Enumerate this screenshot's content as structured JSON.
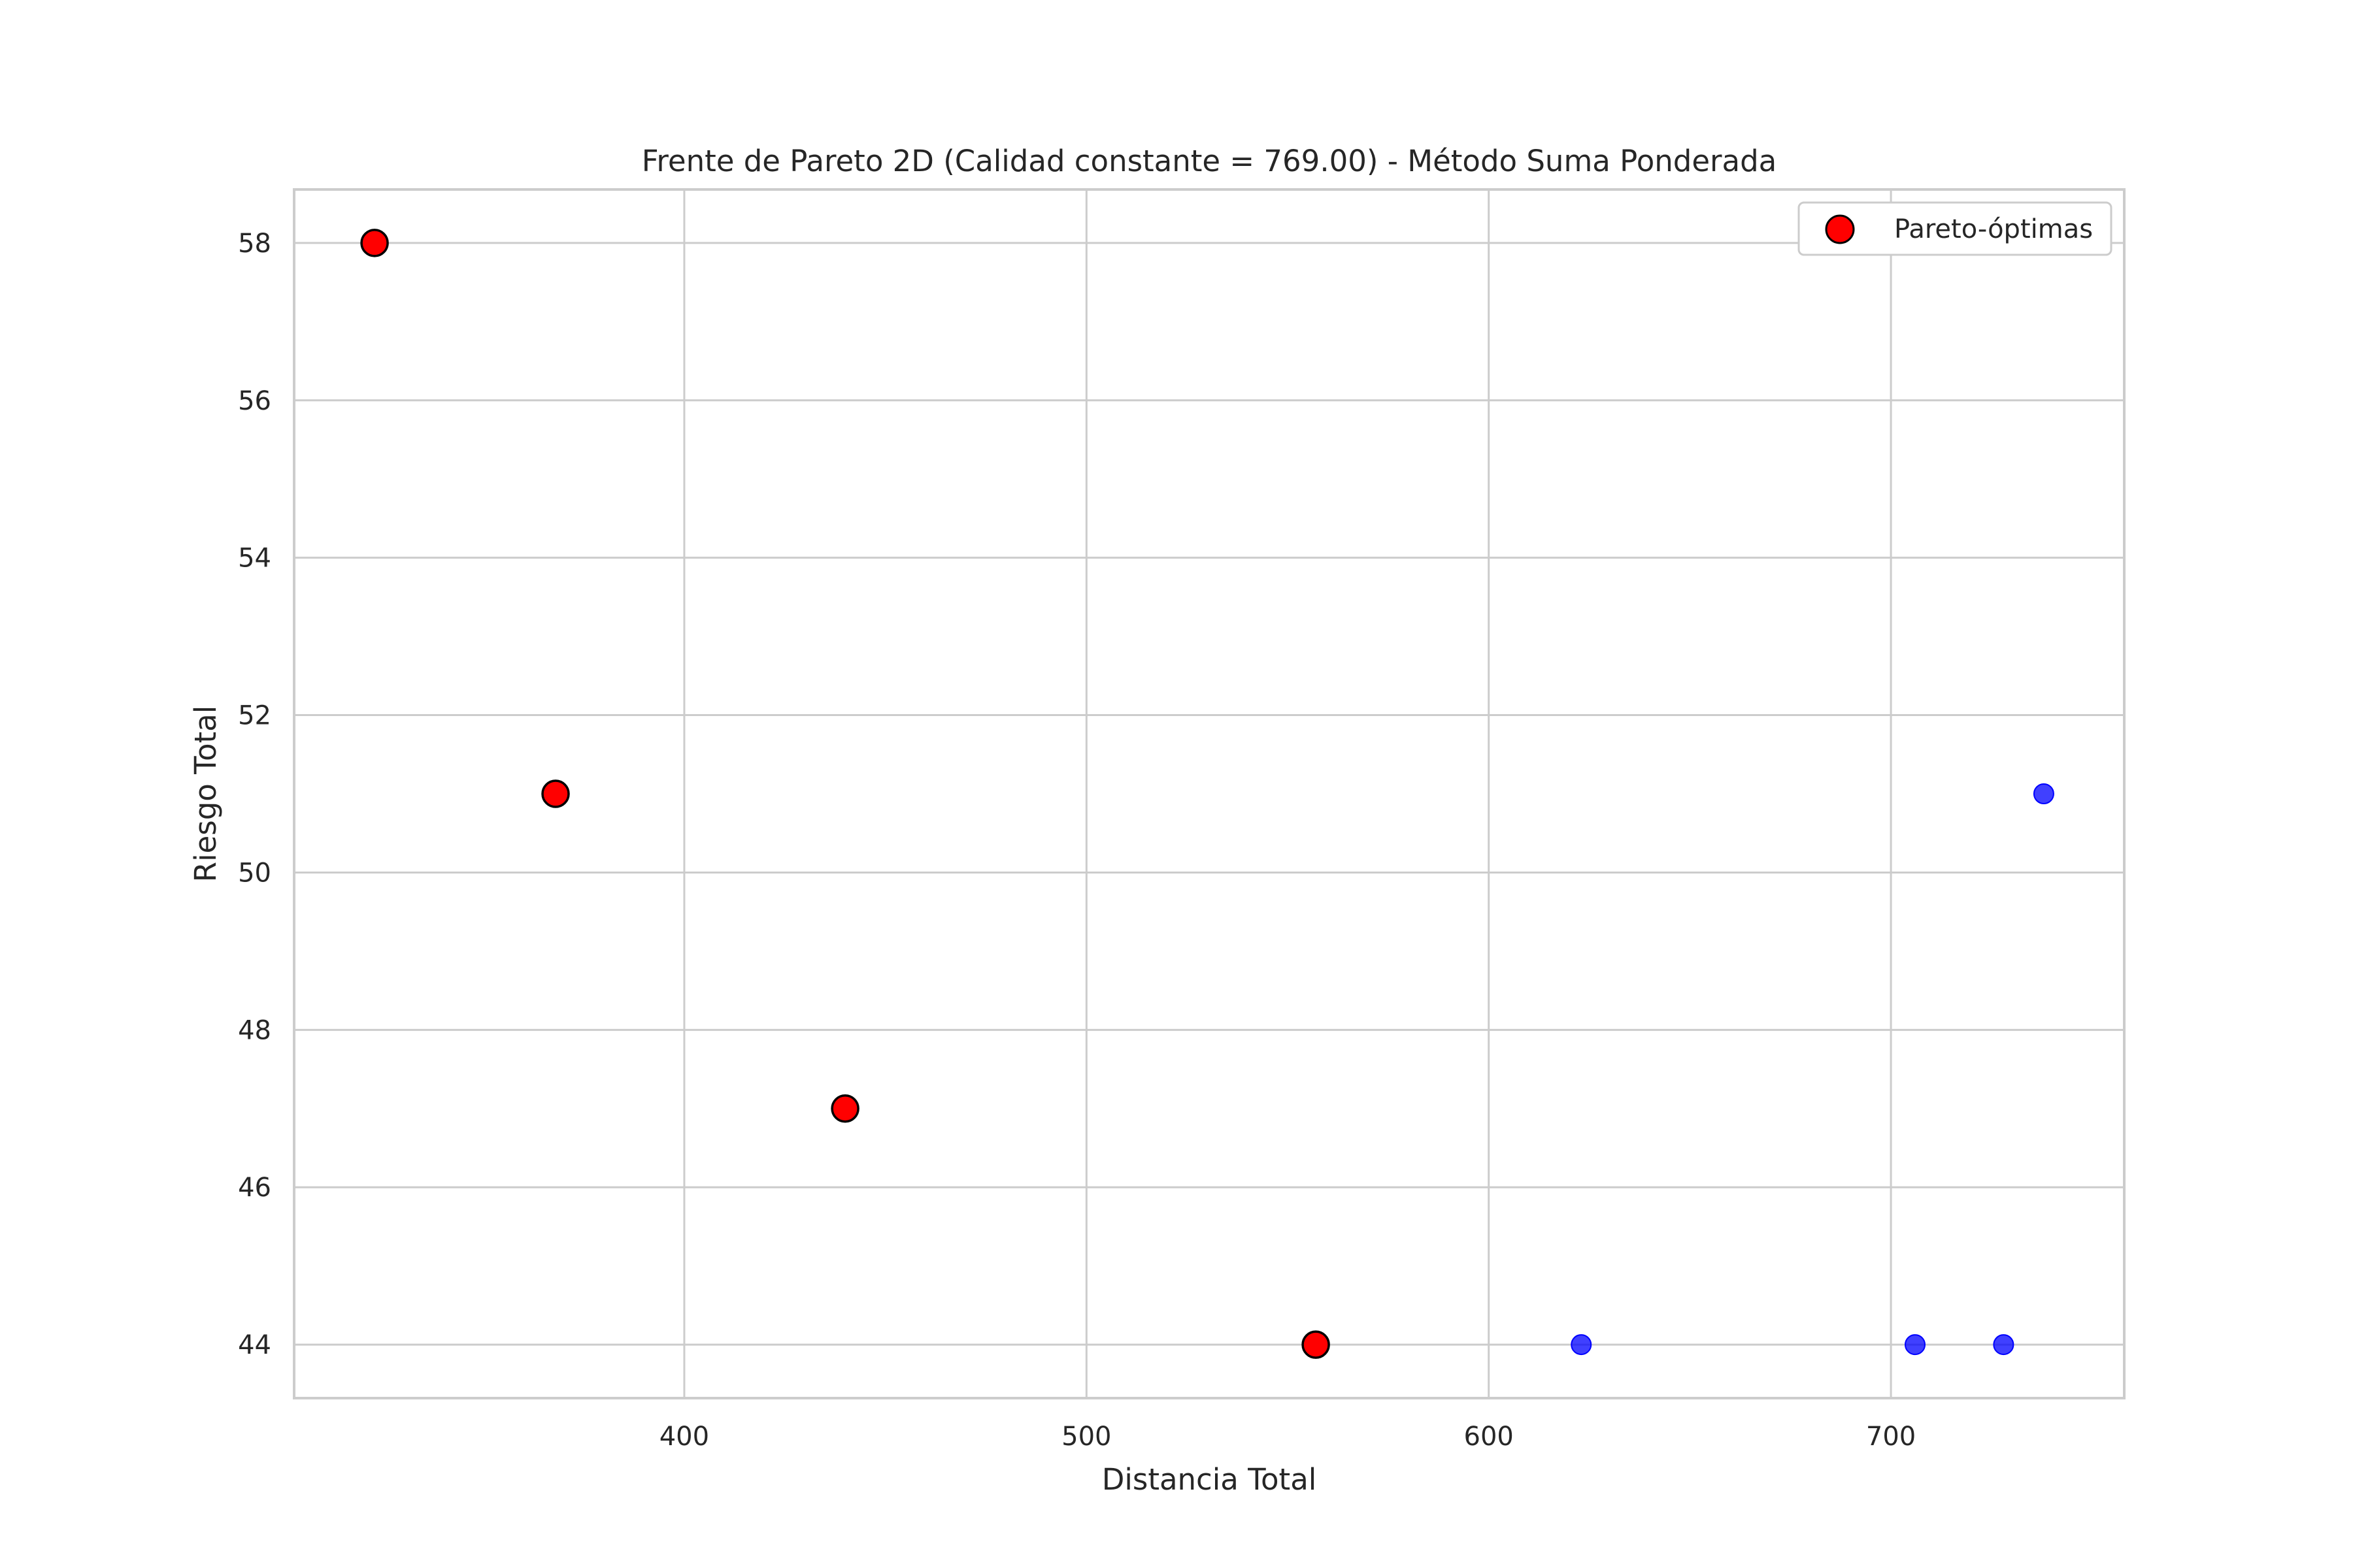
{
  "chart_data": {
    "type": "scatter",
    "title": "Frente de Pareto 2D (Calidad constante = 769.00) - Método Suma Ponderada",
    "xlabel": "Distancia Total",
    "ylabel": "Riesgo Total",
    "xlim": [
      303,
      758
    ],
    "ylim": [
      43.32,
      58.68
    ],
    "xticks": [
      400,
      500,
      600,
      700
    ],
    "yticks": [
      44,
      46,
      48,
      50,
      52,
      54,
      56,
      58
    ],
    "grid": true,
    "legend": {
      "position": "top-right",
      "entries": [
        "Pareto-óptimas"
      ]
    },
    "series": [
      {
        "name": "Pareto-óptimas",
        "color": "#ff0000",
        "edgecolor": "#000000",
        "points": [
          {
            "x": 323,
            "y": 58
          },
          {
            "x": 368,
            "y": 51
          },
          {
            "x": 440,
            "y": 47
          },
          {
            "x": 557,
            "y": 44
          }
        ]
      },
      {
        "color": "#0000ff",
        "points": [
          {
            "x": 623,
            "y": 44
          },
          {
            "x": 706,
            "y": 44
          },
          {
            "x": 728,
            "y": 44
          },
          {
            "x": 738,
            "y": 51
          }
        ]
      }
    ]
  }
}
